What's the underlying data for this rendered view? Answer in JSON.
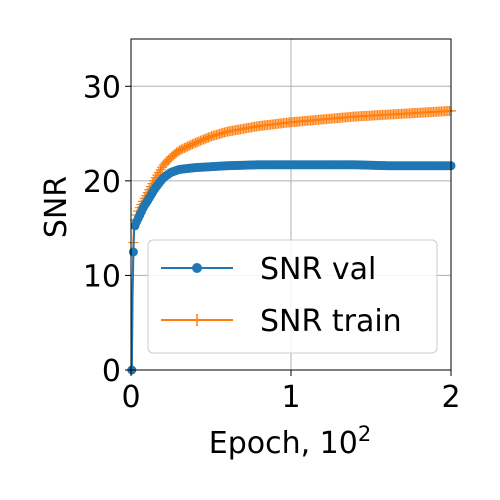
{
  "chart_data": {
    "type": "line",
    "xlabel": "Epoch, 10",
    "xlabel_exponent": "2",
    "ylabel": "SNR",
    "xlim": [
      0,
      2
    ],
    "ylim": [
      0,
      35
    ],
    "xticks": [
      "0",
      "1",
      "2"
    ],
    "yticks": [
      "0",
      "10",
      "20",
      "30"
    ],
    "grid": true,
    "legend_position": "center-right",
    "series": [
      {
        "name": "SNR val",
        "color": "#1f77b4",
        "marker": "circle",
        "x": [
          0.005,
          0.01,
          0.015,
          0.02,
          0.03,
          0.05,
          0.08,
          0.1,
          0.15,
          0.2,
          0.25,
          0.3,
          0.4,
          0.5,
          0.6,
          0.8,
          1.0,
          1.2,
          1.4,
          1.6,
          1.8,
          2.0
        ],
        "y": [
          0,
          8,
          12.5,
          15.0,
          15.5,
          16.2,
          17.3,
          17.8,
          19.2,
          20.3,
          20.9,
          21.2,
          21.4,
          21.5,
          21.6,
          21.7,
          21.7,
          21.7,
          21.7,
          21.6,
          21.6,
          21.6
        ]
      },
      {
        "name": "SNR train",
        "color": "#ff7f0e",
        "marker": "plus",
        "x": [
          0.005,
          0.01,
          0.015,
          0.02,
          0.03,
          0.05,
          0.08,
          0.1,
          0.15,
          0.2,
          0.25,
          0.3,
          0.4,
          0.5,
          0.6,
          0.8,
          1.0,
          1.2,
          1.4,
          1.6,
          1.8,
          2.0
        ],
        "y": [
          0,
          9,
          13.5,
          15.5,
          16.2,
          17.0,
          18.0,
          18.6,
          20.2,
          21.6,
          22.5,
          23.2,
          24.0,
          24.7,
          25.2,
          25.8,
          26.2,
          26.5,
          26.8,
          27.0,
          27.2,
          27.4
        ]
      }
    ]
  }
}
